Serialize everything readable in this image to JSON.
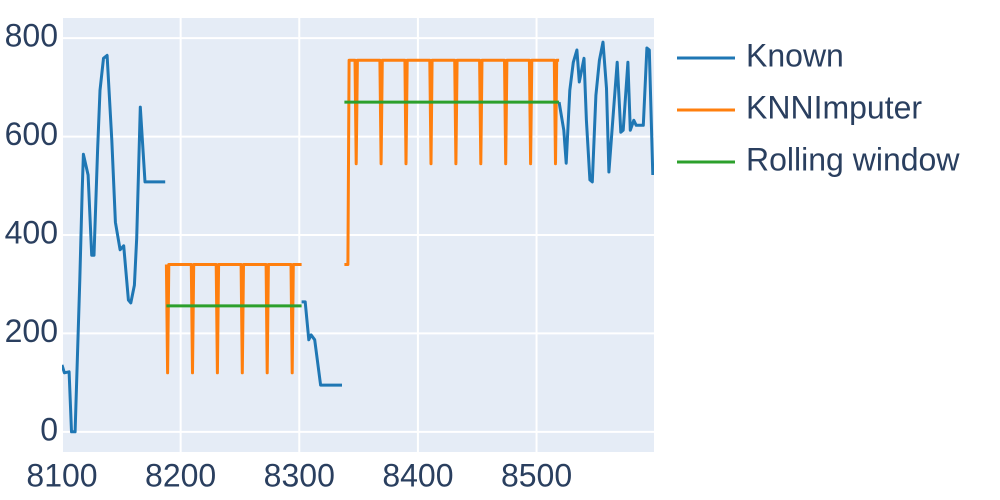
{
  "chart_data": {
    "type": "line",
    "xlim": [
      8100,
      8599
    ],
    "ylim": [
      -41,
      841
    ],
    "xticks": [
      8100,
      8200,
      8300,
      8400,
      8500
    ],
    "yticks": [
      0,
      200,
      400,
      600,
      800
    ],
    "grid": true,
    "legend": "right",
    "series": [
      {
        "name": "Known",
        "color": "#1f77b4",
        "x": [
          8100,
          8102,
          8106,
          8108,
          8111,
          8115,
          8117,
          8118,
          8122,
          8125,
          8127,
          8130,
          8132,
          8135,
          8138,
          8142,
          8145,
          8149,
          8152,
          8156,
          8158,
          8161,
          8163,
          8166,
          8170,
          8187,
          8250,
          8302,
          8305,
          8308,
          8310,
          8313,
          8318,
          8336,
          8430,
          8519,
          8523,
          8525,
          8528,
          8531,
          8534,
          8536,
          8540,
          8542,
          8545,
          8547,
          8550,
          8553,
          8556,
          8559,
          8561,
          8565,
          8568,
          8571,
          8573,
          8577,
          8579,
          8582,
          8584,
          8587,
          8590,
          8593,
          8595,
          8598
        ],
        "values": [
          136,
          120,
          122,
          0,
          0,
          309,
          491,
          564,
          522,
          359,
          359,
          573,
          694,
          759,
          765,
          593,
          426,
          370,
          378,
          268,
          262,
          298,
          394,
          660,
          508,
          508,
          null,
          264,
          264,
          187,
          197,
          187,
          95,
          95,
          null,
          670,
          613,
          546,
          694,
          751,
          776,
          711,
          759,
          633,
          512,
          508,
          684,
          755,
          792,
          698,
          528,
          658,
          751,
          609,
          613,
          751,
          613,
          633,
          623,
          623,
          623,
          780,
          776,
          522
        ]
      },
      {
        "name": "KNNImputer",
        "color": "#ff7f0e",
        "x": [
          8188,
          8189,
          8190,
          8209,
          8210,
          8211,
          8230,
          8231,
          8232,
          8251,
          8252,
          8253,
          8272,
          8273,
          8274,
          8293,
          8294,
          8295,
          8302,
          8320,
          8338,
          8341,
          8342,
          8347,
          8348,
          8349,
          8368,
          8369,
          8370,
          8389,
          8390,
          8391,
          8410,
          8411,
          8412,
          8431,
          8432,
          8433,
          8452,
          8453,
          8454,
          8473,
          8474,
          8475,
          8494,
          8495,
          8496,
          8515,
          8516,
          8517,
          8519
        ],
        "values": [
          340,
          120,
          340,
          340,
          120,
          340,
          340,
          120,
          340,
          340,
          120,
          340,
          340,
          120,
          340,
          340,
          120,
          340,
          340,
          null,
          340,
          340,
          755,
          755,
          545,
          755,
          755,
          545,
          755,
          755,
          545,
          755,
          755,
          545,
          755,
          755,
          545,
          755,
          755,
          545,
          755,
          755,
          545,
          755,
          755,
          545,
          755,
          755,
          545,
          755,
          755
        ]
      },
      {
        "name": "Rolling window",
        "color": "#2ca02c",
        "x": [
          8188,
          8302,
          8320,
          8338,
          8519
        ],
        "values": [
          256,
          256,
          null,
          670,
          670
        ]
      }
    ]
  }
}
